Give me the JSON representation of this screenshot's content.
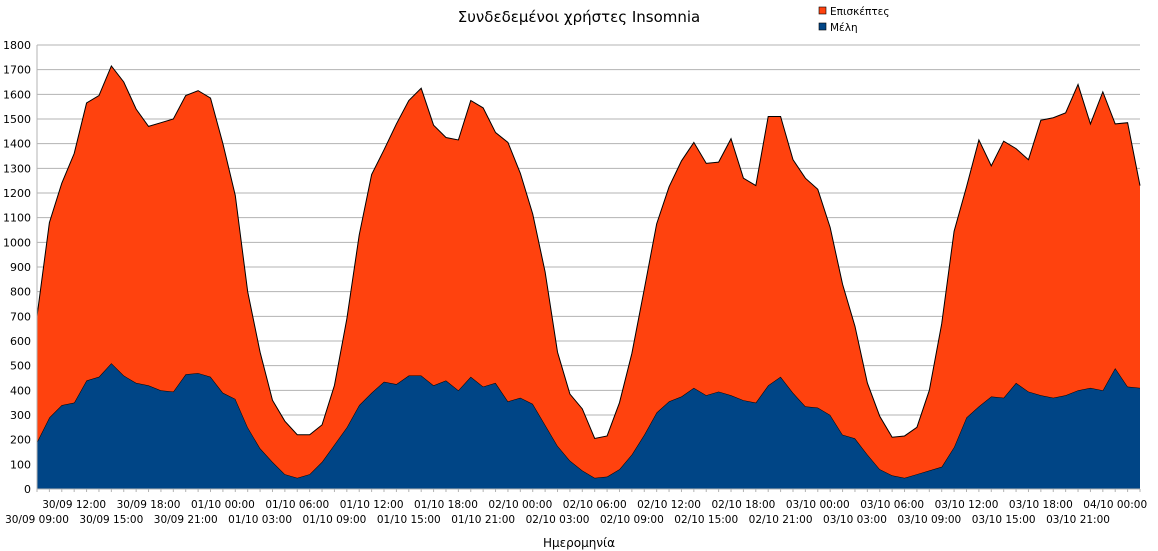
{
  "chart_data": {
    "type": "area",
    "stacked": true,
    "title": "Συνδεδεμένοι χρήστες Insomnia",
    "xlabel": "Ημερομηνία",
    "ylabel": "",
    "ylim": [
      0,
      1800
    ],
    "yticks": [
      0,
      100,
      200,
      300,
      400,
      500,
      600,
      700,
      800,
      900,
      1000,
      1100,
      1200,
      1300,
      1400,
      1500,
      1600,
      1700,
      1800
    ],
    "grid": true,
    "legend_position": "top-right",
    "x_interval_hours": 1,
    "xtick_labels": [
      "30/09 09:00",
      "30/09 12:00",
      "30/09 15:00",
      "30/09 18:00",
      "30/09 21:00",
      "01/10 00:00",
      "01/10 03:00",
      "01/10 06:00",
      "01/10 09:00",
      "01/10 12:00",
      "01/10 15:00",
      "01/10 18:00",
      "01/10 21:00",
      "02/10 00:00",
      "02/10 03:00",
      "02/10 06:00",
      "02/10 09:00",
      "02/10 12:00",
      "02/10 15:00",
      "02/10 18:00",
      "02/10 21:00",
      "03/10 00:00",
      "03/10 03:00",
      "03/10 06:00",
      "03/10 09:00",
      "03/10 12:00",
      "03/10 15:00",
      "03/10 18:00",
      "03/10 21:00",
      "04/10 00:00"
    ],
    "series": [
      {
        "name": "Μέλη",
        "color": "#004586",
        "values": [
          190,
          290,
          340,
          350,
          440,
          455,
          510,
          460,
          430,
          420,
          400,
          395,
          465,
          470,
          455,
          390,
          365,
          250,
          165,
          110,
          60,
          45,
          60,
          110,
          180,
          250,
          340,
          390,
          435,
          425,
          460,
          460,
          420,
          440,
          400,
          455,
          415,
          430,
          355,
          370,
          345,
          260,
          175,
          115,
          75,
          45,
          50,
          80,
          140,
          220,
          310,
          355,
          375,
          410,
          380,
          395,
          380,
          360,
          350,
          420,
          455,
          390,
          335,
          330,
          300,
          220,
          205,
          140,
          80,
          55,
          45,
          60,
          75,
          90,
          170,
          290,
          335,
          375,
          370,
          430,
          395,
          380,
          370,
          380,
          400,
          410,
          400,
          490,
          415,
          410
        ]
      },
      {
        "name": "Επισκέπτες",
        "color": "#ff420e",
        "values": [
          510,
          790,
          900,
          1010,
          1125,
          1140,
          1205,
          1190,
          1110,
          1050,
          1085,
          1105,
          1130,
          1145,
          1130,
          1010,
          825,
          550,
          390,
          250,
          215,
          175,
          160,
          150,
          240,
          440,
          690,
          885,
          940,
          1055,
          1115,
          1165,
          1055,
          985,
          1015,
          1120,
          1130,
          1015,
          1050,
          910,
          770,
          620,
          380,
          270,
          250,
          160,
          165,
          270,
          410,
          590,
          765,
          870,
          955,
          995,
          940,
          930,
          1040,
          900,
          880,
          1090,
          1055,
          945,
          925,
          885,
          760,
          610,
          455,
          290,
          215,
          155,
          170,
          190,
          325,
          580,
          875,
          935,
          1080,
          935,
          1040,
          950,
          940,
          1115,
          1135,
          1145,
          1240,
          1070,
          1210,
          990,
          1070,
          820
        ]
      }
    ]
  }
}
